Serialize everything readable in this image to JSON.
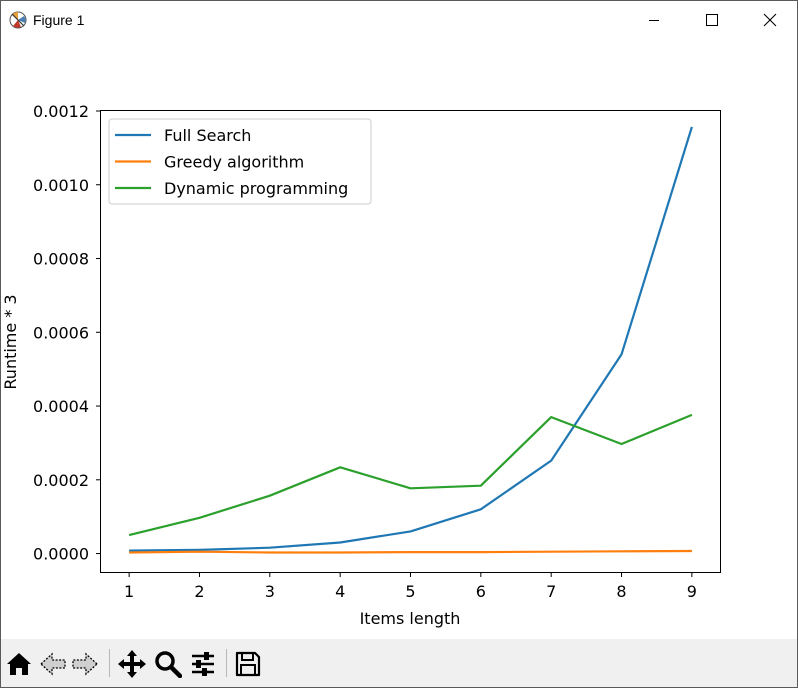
{
  "window": {
    "title": "Figure 1",
    "controls": {
      "minimize_icon": "minimize-icon",
      "maximize_icon": "maximize-icon",
      "close_icon": "close-icon"
    }
  },
  "toolbar": {
    "buttons": [
      {
        "name": "home",
        "icon": "home-icon"
      },
      {
        "name": "back",
        "icon": "back-arrow-icon"
      },
      {
        "name": "forward",
        "icon": "forward-arrow-icon"
      },
      {
        "name": "pan",
        "icon": "move-icon"
      },
      {
        "name": "zoom",
        "icon": "zoom-icon"
      },
      {
        "name": "configure-subplots",
        "icon": "sliders-icon"
      },
      {
        "name": "save",
        "icon": "save-icon"
      }
    ]
  },
  "chart_data": {
    "type": "line",
    "xlabel": "Items length",
    "ylabel": "Runtime * 3",
    "x": [
      1,
      2,
      3,
      4,
      5,
      6,
      7,
      8,
      9
    ],
    "xticks": [
      "1",
      "2",
      "3",
      "4",
      "5",
      "6",
      "7",
      "8",
      "9"
    ],
    "yticks": [
      "0.0000",
      "0.0002",
      "0.0004",
      "0.0006",
      "0.0008",
      "0.0010",
      "0.0012"
    ],
    "ytick_values": [
      0,
      0.0002,
      0.0004,
      0.0006,
      0.0008,
      0.001,
      0.0012
    ],
    "xlim": [
      0.6,
      9.4
    ],
    "ylim": [
      -5e-05,
      0.0012
    ],
    "grid": false,
    "legend_position": "top-left",
    "series": [
      {
        "name": "Full Search",
        "color": "#1f77b4",
        "values": [
          8e-06,
          1e-05,
          1.6e-05,
          3e-05,
          6e-05,
          0.00012,
          0.000252,
          0.00054,
          0.001157
        ]
      },
      {
        "name": "Greedy algorithm",
        "color": "#ff7f0e",
        "values": [
          3e-06,
          5e-06,
          3e-06,
          3e-06,
          4e-06,
          4e-06,
          5e-06,
          6e-06,
          7e-06
        ]
      },
      {
        "name": "Dynamic programming",
        "color": "#2ca02c",
        "values": [
          5e-05,
          9.7e-05,
          0.000157,
          0.000234,
          0.000177,
          0.000184,
          0.00037,
          0.000297,
          0.000376
        ]
      }
    ]
  }
}
